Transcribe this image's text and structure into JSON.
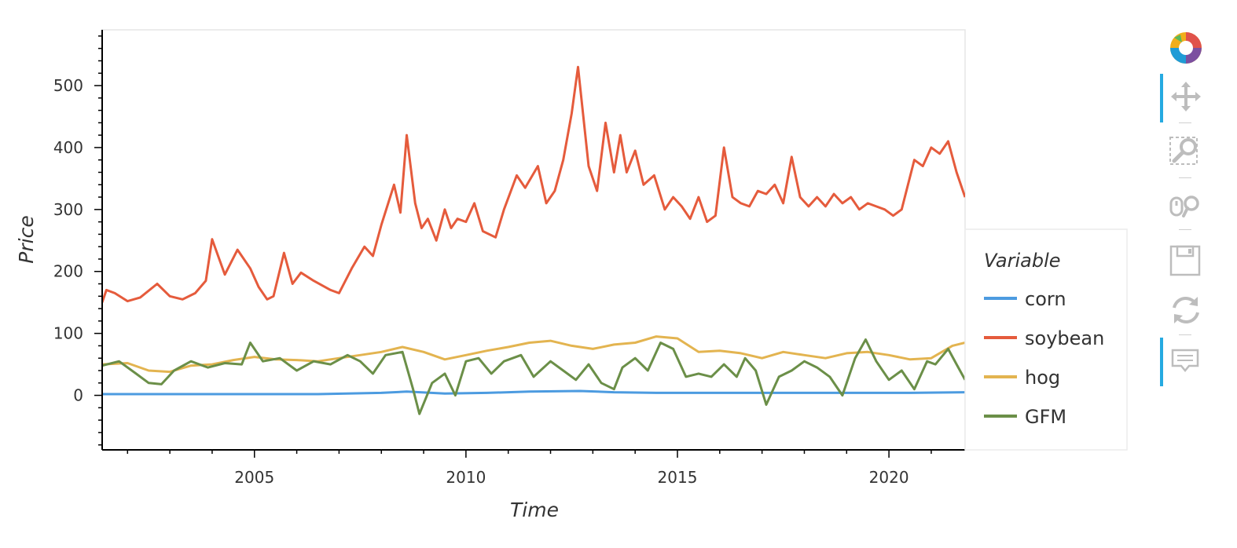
{
  "chart_data": {
    "type": "line",
    "xlabel": "Time",
    "ylabel": "Price",
    "xlim": [
      2001.4,
      2021.8
    ],
    "ylim": [
      -88,
      590
    ],
    "x_ticks": [
      2005,
      2010,
      2015,
      2020
    ],
    "x_tick_labels": [
      "2005",
      "2010",
      "2015",
      "2020"
    ],
    "y_ticks": [
      0,
      100,
      200,
      300,
      400,
      500
    ],
    "y_tick_labels": [
      "0",
      "100",
      "200",
      "300",
      "400",
      "500"
    ],
    "grid": false,
    "legend": {
      "title": "Variable",
      "position": "right"
    },
    "series": [
      {
        "name": "corn",
        "color": "#4c9be0",
        "x": [
          2001.4,
          2003,
          2005,
          2006.5,
          2008,
          2008.6,
          2009.5,
          2010.5,
          2011.5,
          2012.7,
          2013.5,
          2014.5,
          2015.5,
          2017,
          2018.5,
          2019.5,
          2020.5,
          2021.8
        ],
        "y": [
          2,
          2,
          2,
          2,
          4,
          6,
          3,
          4,
          6,
          7,
          5,
          4,
          4,
          4,
          4,
          4,
          4,
          5
        ]
      },
      {
        "name": "soybean",
        "color": "#e55b3c",
        "x": [
          2001.4,
          2001.5,
          2001.7,
          2002.0,
          2002.3,
          2002.7,
          2003.0,
          2003.3,
          2003.6,
          2003.85,
          2004.0,
          2004.3,
          2004.6,
          2004.9,
          2005.1,
          2005.3,
          2005.45,
          2005.7,
          2005.9,
          2006.1,
          2006.4,
          2006.8,
          2007.0,
          2007.3,
          2007.6,
          2007.8,
          2008.0,
          2008.3,
          2008.45,
          2008.6,
          2008.8,
          2008.95,
          2009.1,
          2009.3,
          2009.5,
          2009.65,
          2009.8,
          2010.0,
          2010.2,
          2010.4,
          2010.7,
          2010.9,
          2011.2,
          2011.4,
          2011.7,
          2011.9,
          2012.1,
          2012.3,
          2012.5,
          2012.65,
          2012.9,
          2013.1,
          2013.3,
          2013.5,
          2013.65,
          2013.8,
          2014.0,
          2014.2,
          2014.45,
          2014.7,
          2014.9,
          2015.1,
          2015.3,
          2015.5,
          2015.7,
          2015.9,
          2016.1,
          2016.3,
          2016.5,
          2016.7,
          2016.9,
          2017.1,
          2017.3,
          2017.5,
          2017.7,
          2017.9,
          2018.1,
          2018.3,
          2018.5,
          2018.7,
          2018.9,
          2019.1,
          2019.3,
          2019.5,
          2019.7,
          2019.9,
          2020.1,
          2020.3,
          2020.6,
          2020.8,
          2021.0,
          2021.2,
          2021.4,
          2021.6,
          2021.8
        ],
        "y": [
          150,
          170,
          165,
          152,
          158,
          180,
          160,
          155,
          165,
          185,
          252,
          195,
          235,
          205,
          175,
          155,
          160,
          230,
          180,
          198,
          185,
          170,
          165,
          205,
          240,
          225,
          275,
          340,
          295,
          420,
          310,
          270,
          285,
          250,
          300,
          270,
          285,
          280,
          310,
          265,
          255,
          300,
          355,
          335,
          370,
          310,
          330,
          380,
          455,
          530,
          370,
          330,
          440,
          360,
          420,
          360,
          395,
          340,
          355,
          300,
          320,
          305,
          285,
          320,
          280,
          290,
          400,
          320,
          310,
          305,
          330,
          325,
          340,
          310,
          385,
          320,
          305,
          320,
          305,
          325,
          310,
          320,
          300,
          310,
          305,
          300,
          290,
          300,
          380,
          370,
          400,
          390,
          410,
          360,
          320
        ]
      },
      {
        "name": "hog",
        "color": "#e3b450",
        "x": [
          2001.4,
          2002,
          2002.5,
          2003,
          2003.5,
          2004,
          2004.5,
          2005,
          2005.5,
          2006,
          2006.5,
          2007,
          2007.5,
          2008,
          2008.5,
          2009,
          2009.5,
          2010,
          2010.5,
          2011,
          2011.5,
          2012,
          2012.5,
          2013,
          2013.5,
          2014,
          2014.5,
          2015,
          2015.5,
          2016,
          2016.5,
          2017,
          2017.5,
          2018,
          2018.5,
          2019,
          2019.5,
          2020,
          2020.5,
          2021,
          2021.5,
          2021.8
        ],
        "y": [
          50,
          52,
          40,
          38,
          48,
          50,
          57,
          62,
          58,
          57,
          55,
          60,
          65,
          70,
          78,
          70,
          58,
          65,
          72,
          78,
          85,
          88,
          80,
          75,
          82,
          85,
          95,
          92,
          70,
          72,
          68,
          60,
          70,
          65,
          60,
          68,
          70,
          65,
          58,
          60,
          80,
          85
        ]
      },
      {
        "name": "GFM",
        "color": "#6b8f48",
        "x": [
          2001.4,
          2001.8,
          2002.2,
          2002.5,
          2002.8,
          2003.1,
          2003.5,
          2003.9,
          2004.3,
          2004.7,
          2004.9,
          2005.2,
          2005.6,
          2006.0,
          2006.4,
          2006.8,
          2007.2,
          2007.5,
          2007.8,
          2008.1,
          2008.5,
          2008.75,
          2008.9,
          2009.2,
          2009.5,
          2009.75,
          2010.0,
          2010.3,
          2010.6,
          2010.9,
          2011.3,
          2011.6,
          2012.0,
          2012.3,
          2012.6,
          2012.9,
          2013.2,
          2013.5,
          2013.7,
          2014.0,
          2014.3,
          2014.6,
          2014.9,
          2015.2,
          2015.5,
          2015.8,
          2016.1,
          2016.4,
          2016.6,
          2016.85,
          2017.1,
          2017.4,
          2017.7,
          2018.0,
          2018.3,
          2018.6,
          2018.9,
          2019.2,
          2019.45,
          2019.7,
          2020.0,
          2020.3,
          2020.6,
          2020.9,
          2021.1,
          2021.4,
          2021.6,
          2021.8
        ],
        "y": [
          48,
          55,
          35,
          20,
          18,
          40,
          55,
          45,
          52,
          50,
          85,
          55,
          60,
          40,
          55,
          50,
          65,
          55,
          35,
          65,
          70,
          10,
          -30,
          20,
          35,
          0,
          55,
          60,
          35,
          55,
          65,
          30,
          55,
          40,
          25,
          50,
          20,
          10,
          45,
          60,
          40,
          85,
          75,
          30,
          35,
          30,
          50,
          30,
          60,
          40,
          -15,
          30,
          40,
          55,
          45,
          30,
          0,
          60,
          90,
          55,
          25,
          40,
          10,
          55,
          50,
          75,
          50,
          25
        ]
      }
    ]
  },
  "toolbar": {
    "tools": [
      {
        "name": "logo",
        "label": "Bokeh",
        "active": false
      },
      {
        "name": "pan",
        "label": "Pan",
        "active": true
      },
      {
        "name": "box-zoom",
        "label": "Box Zoom",
        "active": false
      },
      {
        "name": "wheel-zoom",
        "label": "Wheel Zoom",
        "active": false
      },
      {
        "name": "save",
        "label": "Save",
        "active": false
      },
      {
        "name": "reset",
        "label": "Reset",
        "active": false
      },
      {
        "name": "hover",
        "label": "Hover",
        "active": true
      }
    ]
  }
}
